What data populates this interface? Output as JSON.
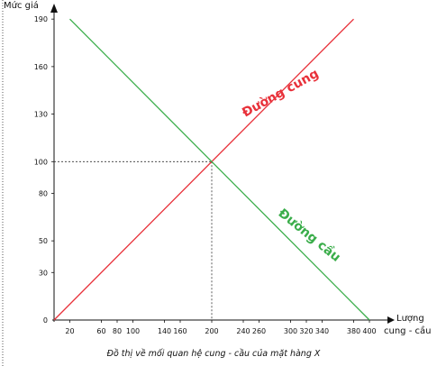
{
  "chart_data": {
    "type": "line",
    "ylabel": "Mức giá",
    "xlabel_line1": "Lượng",
    "xlabel_line2": "cung - cầu",
    "caption": "Đồ thị về mối quan hệ cung - cầu của mặt hàng X",
    "xlim": [
      0,
      410
    ],
    "ylim": [
      0,
      195
    ],
    "x_ticks": [
      20,
      60,
      80,
      100,
      140,
      160,
      200,
      240,
      260,
      300,
      320,
      340,
      380,
      400
    ],
    "y_ticks": [
      0,
      30,
      50,
      80,
      100,
      130,
      160,
      190
    ],
    "series": [
      {
        "name": "Đường cung",
        "color": "#e8313a",
        "points": [
          [
            0,
            0
          ],
          [
            380,
            190
          ]
        ]
      },
      {
        "name": "Đường cầu",
        "color": "#3aad4a",
        "points": [
          [
            20,
            190
          ],
          [
            400,
            0
          ]
        ]
      }
    ],
    "equilibrium": {
      "x": 200,
      "y": 100
    }
  }
}
